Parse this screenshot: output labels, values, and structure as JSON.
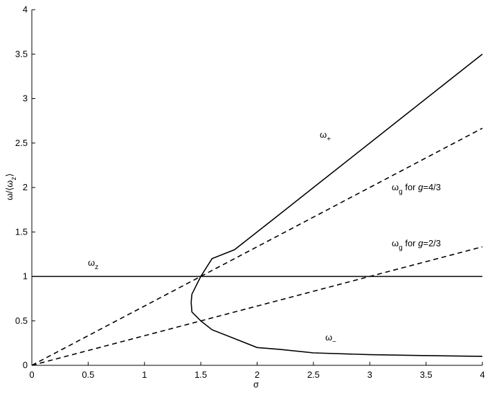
{
  "chart_data": {
    "type": "line",
    "xlabel": "σ",
    "ylabel": "ω/⟨ω",
    "ylabel_sub": "z",
    "ylabel_close": "⟩",
    "xlim": [
      0,
      4
    ],
    "ylim": [
      0,
      4
    ],
    "grid": false,
    "x_ticks": [
      "0",
      "0.5",
      "1",
      "1.5",
      "2",
      "2.5",
      "3",
      "3.5",
      "4"
    ],
    "y_ticks": [
      "0",
      "0.5",
      "1",
      "1.5",
      "2",
      "2.5",
      "3",
      "3.5",
      "4"
    ],
    "series": [
      {
        "name_main": "ω",
        "name_sub": "+",
        "style": "solid",
        "x": [
          1.4142,
          1.4211,
          1.5,
          1.6,
          1.8,
          2.0,
          2.2,
          2.5,
          3.0,
          3.5,
          4.0
        ],
        "y": [
          0.7071,
          0.8,
          1.0,
          1.2,
          1.3,
          1.5,
          1.7,
          2.0,
          2.5,
          3.0,
          3.5
        ]
      },
      {
        "name_main": "ω",
        "name_sub": "−",
        "style": "solid",
        "x": [
          1.4142,
          1.4211,
          1.5,
          1.6,
          1.8,
          2.0,
          2.2,
          2.5,
          3.0,
          3.5,
          4.0
        ],
        "y": [
          0.7071,
          0.6,
          0.5,
          0.4,
          0.3,
          0.2,
          0.18,
          0.14,
          0.12,
          0.11,
          0.1
        ]
      },
      {
        "name_main": "ω",
        "name_sub": "z",
        "style": "solid",
        "x": [
          0,
          4
        ],
        "y": [
          1,
          1
        ]
      },
      {
        "name_main": "ω",
        "name_sub": "g",
        "name_rest": " for ",
        "name_g": "g",
        "name_val": "=4/3",
        "style": "dashed",
        "x": [
          0,
          4
        ],
        "y": [
          0,
          2.6667
        ]
      },
      {
        "name_main": "ω",
        "name_sub": "g",
        "name_rest": " for ",
        "name_g": "g",
        "name_val": "=2/3",
        "style": "dashed",
        "x": [
          0,
          4
        ],
        "y": [
          0,
          1.3333
        ]
      }
    ]
  }
}
